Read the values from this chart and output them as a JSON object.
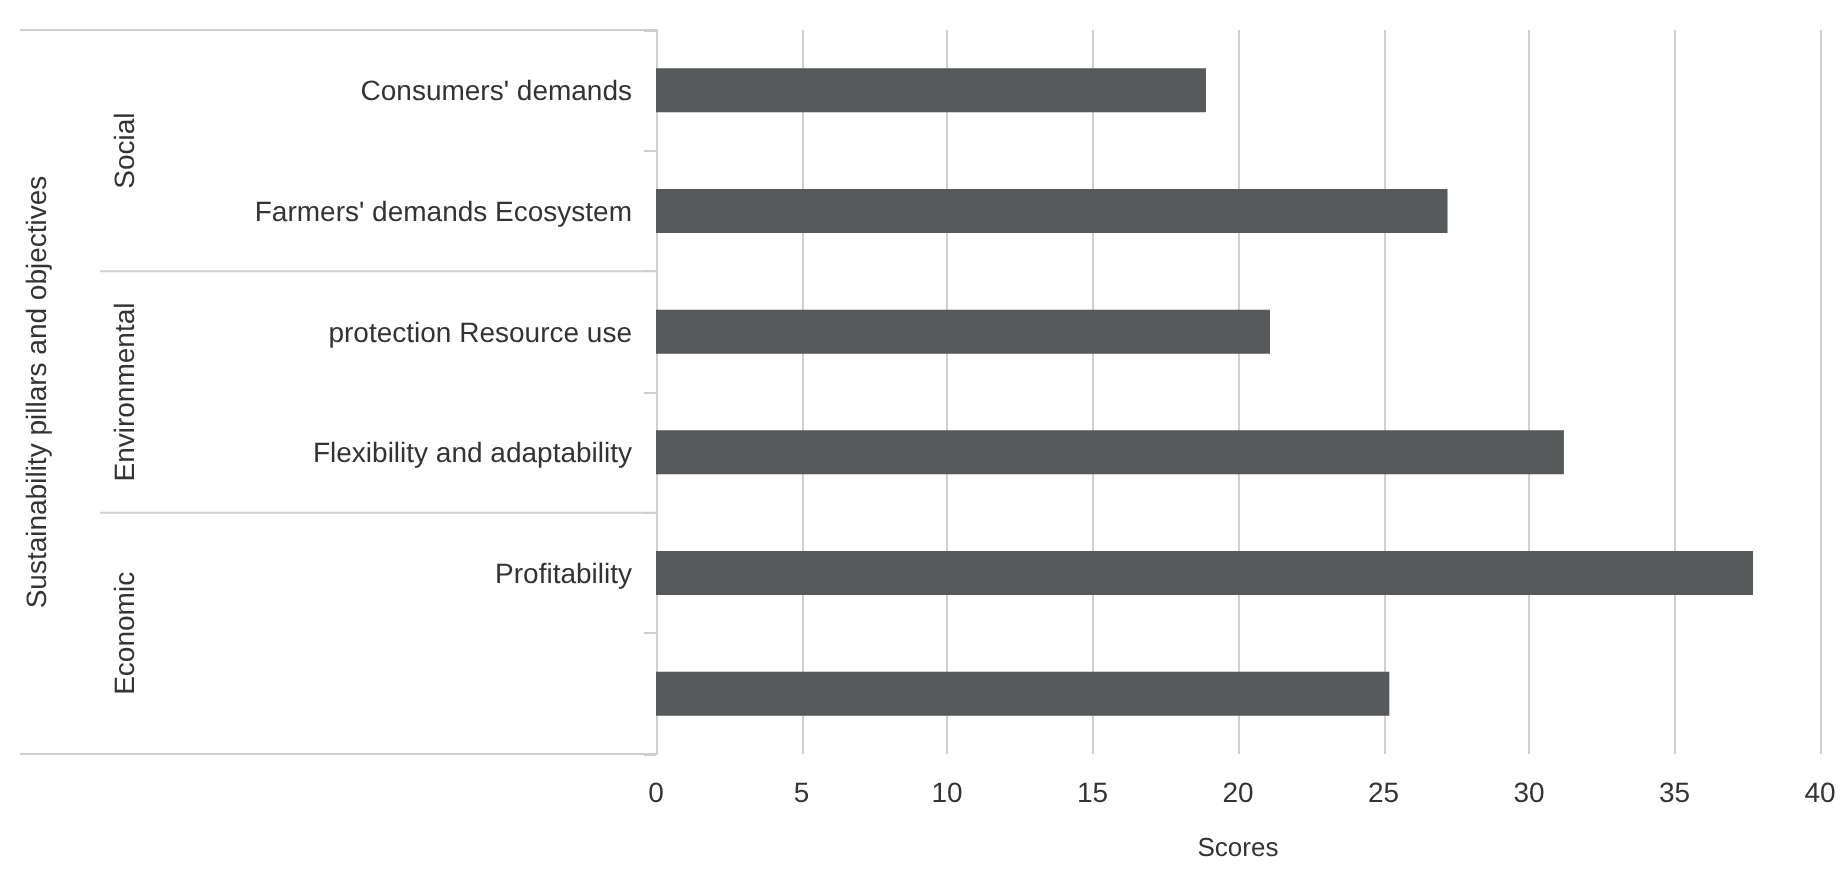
{
  "chart_data": {
    "type": "bar",
    "orientation": "horizontal",
    "xlabel": "Scores",
    "categories": [
      "Consumers' demands",
      "Farmers' demands Ecosystem",
      "protection Resource use",
      "Flexibility and adaptability",
      "Profitability",
      null
    ],
    "values": [
      18.9,
      27.2,
      21.1,
      31.2,
      37.7,
      25.2
    ],
    "color": "#575a5a",
    "xlim": [
      0,
      40
    ],
    "xticks": [
      0,
      5,
      10,
      15,
      20,
      25,
      30,
      35,
      40
    ],
    "grid": "x",
    "annotations": [
      "Sustainability pillars and objectives",
      "Social",
      "Environmental",
      "Economic"
    ]
  }
}
